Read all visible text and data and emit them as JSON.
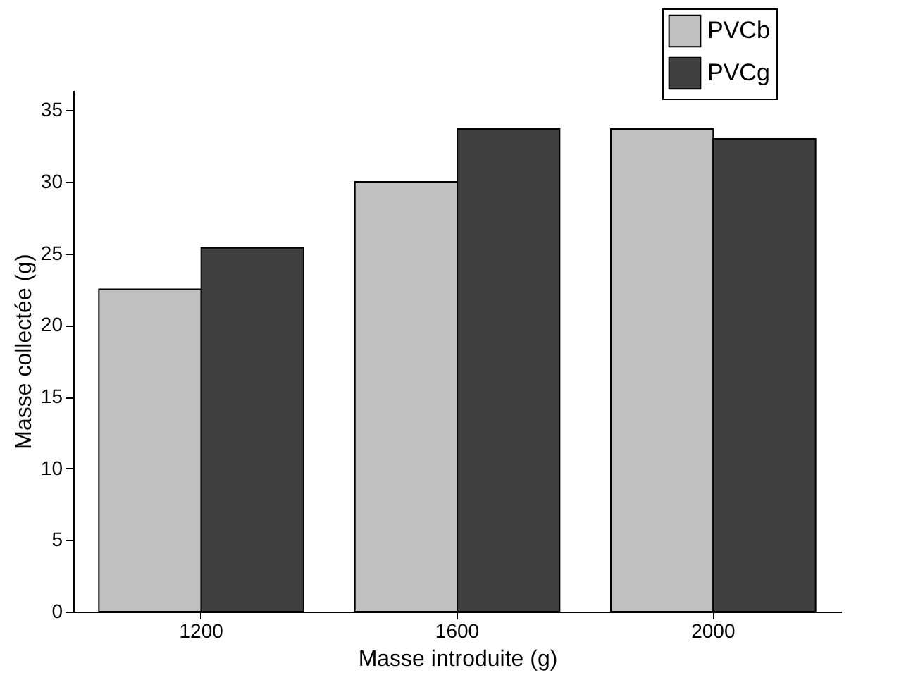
{
  "chart_data": {
    "type": "bar",
    "xlabel": "Masse introduite (g)",
    "ylabel": "Masse collectée (g)",
    "categories": [
      "1200",
      "1600",
      "2000"
    ],
    "series": [
      {
        "name": "PVCb",
        "color": "#c0c0c0",
        "values": [
          22.5,
          30.0,
          33.7
        ]
      },
      {
        "name": "PVCg",
        "color": "#404040",
        "values": [
          25.4,
          33.7,
          33.0
        ]
      }
    ],
    "ylim": [
      0,
      36.4
    ],
    "yticks": [
      0,
      5,
      10,
      15,
      20,
      25,
      30,
      35
    ],
    "grid": false,
    "legend": "top right"
  }
}
